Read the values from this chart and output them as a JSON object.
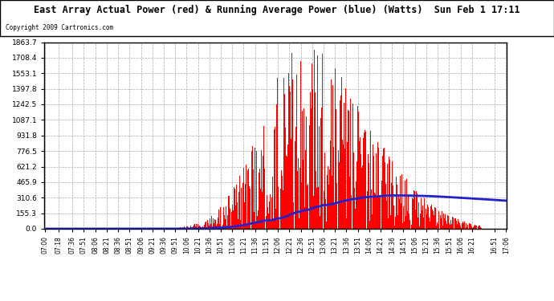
{
  "title": "East Array Actual Power (red) & Running Average Power (blue) (Watts)  Sun Feb 1 17:11",
  "copyright": "Copyright 2009 Cartronics.com",
  "ymax": 1863.7,
  "ymin": 0.0,
  "yticks": [
    0.0,
    155.3,
    310.6,
    465.9,
    621.2,
    776.5,
    931.8,
    1087.1,
    1242.5,
    1397.8,
    1553.1,
    1708.4,
    1863.7
  ],
  "bar_color": "#FF0000",
  "line_color": "#2222CC",
  "background_color": "#FFFFFF",
  "grid_color": "#AAAAAA",
  "title_color": "#000000",
  "minutes_start": 420,
  "minutes_end": 1026,
  "minutes_step": 1,
  "xtick_labels": [
    "07:00",
    "07:18",
    "07:36",
    "07:51",
    "08:06",
    "08:21",
    "08:36",
    "08:51",
    "09:06",
    "09:21",
    "09:36",
    "09:51",
    "10:06",
    "10:21",
    "10:36",
    "10:51",
    "11:06",
    "11:21",
    "11:36",
    "11:51",
    "12:06",
    "12:21",
    "12:36",
    "12:51",
    "13:06",
    "13:21",
    "13:36",
    "13:51",
    "14:06",
    "14:21",
    "14:36",
    "14:51",
    "15:06",
    "15:21",
    "15:36",
    "15:51",
    "16:06",
    "16:21",
    "16:51",
    "17:06"
  ],
  "xtick_minutes": [
    420,
    438,
    456,
    471,
    486,
    501,
    516,
    531,
    546,
    561,
    576,
    591,
    606,
    621,
    636,
    651,
    666,
    681,
    696,
    711,
    726,
    741,
    756,
    771,
    786,
    801,
    816,
    831,
    846,
    861,
    876,
    891,
    906,
    921,
    936,
    951,
    966,
    981,
    1011,
    1026
  ]
}
